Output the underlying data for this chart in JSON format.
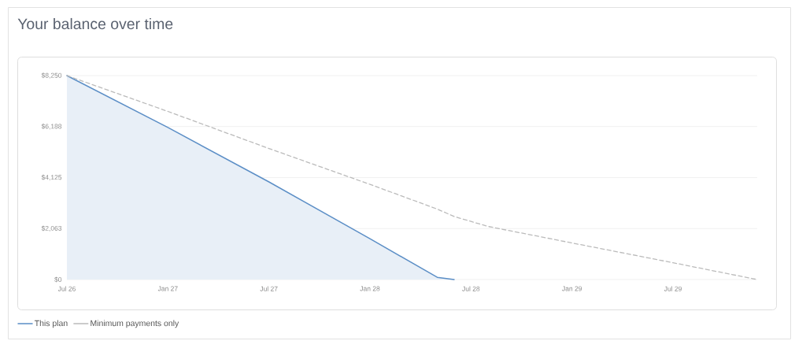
{
  "chart_data": {
    "type": "area",
    "title": "Your balance over time",
    "series": [
      {
        "name": "This plan",
        "color": "#5b8ec6",
        "x": [
          "2026-07",
          "2027-01",
          "2027-07",
          "2028-01",
          "2028-05",
          "2028-06"
        ],
        "values": [
          8250,
          6150,
          3950,
          1650,
          90,
          0
        ]
      },
      {
        "name": "Minimum payments only",
        "type": "line",
        "color": "#bbbbbb",
        "line_style": "dashed",
        "x": [
          "2026-07",
          "2027-01",
          "2027-07",
          "2028-01",
          "2028-05",
          "2028-06",
          "2028-07",
          "2028-08",
          "2029-01",
          "2029-07",
          "2029-12"
        ],
        "values": [
          8250,
          6800,
          5300,
          3850,
          2850,
          2550,
          2350,
          2150,
          1480,
          680,
          0
        ]
      }
    ],
    "xlim": [
      "2026-07",
      "2029-12"
    ],
    "xticks": [
      {
        "value": "2026-07",
        "label": "Jul 26"
      },
      {
        "value": "2027-01",
        "label": "Jan 27"
      },
      {
        "value": "2027-07",
        "label": "Jul 27"
      },
      {
        "value": "2028-01",
        "label": "Jan 28"
      },
      {
        "value": "2028-07",
        "label": "Jul 28"
      },
      {
        "value": "2029-01",
        "label": "Jan 29"
      },
      {
        "value": "2029-07",
        "label": "Jul 29"
      }
    ],
    "ylim": [
      0,
      8250
    ],
    "yticks": [
      {
        "value": 0,
        "label": "$0"
      },
      {
        "value": 2063,
        "label": "$2,063"
      },
      {
        "value": 4125,
        "label": "$4,125"
      },
      {
        "value": 6188,
        "label": "$6,188"
      },
      {
        "value": 8250,
        "label": "$8,250"
      }
    ],
    "grid": "y",
    "legend": "bottom"
  }
}
